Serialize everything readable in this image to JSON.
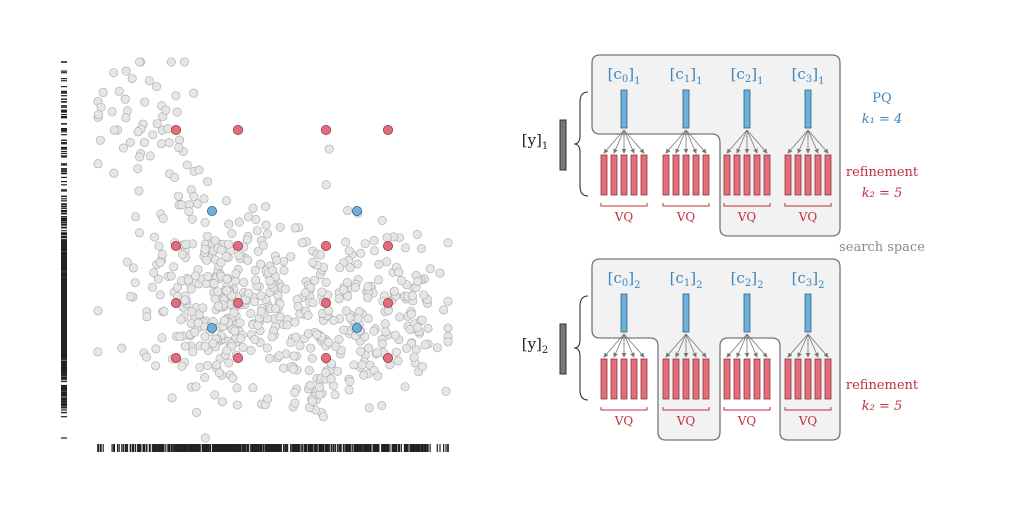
{
  "colors": {
    "data_point": "#e6e6e6",
    "pq_centroid": "#6fb0da",
    "refine_centroid": "#e36d7a",
    "pq_blue": "#3a86c0",
    "refine_red": "#c0303e",
    "search_space_gray": "#8a8a8a"
  },
  "scatter": {
    "pq_centroids": [
      [
        212,
        211
      ],
      [
        357,
        211
      ],
      [
        212,
        328
      ],
      [
        357,
        328
      ]
    ],
    "refinement_centroids": [
      [
        176,
        130
      ],
      [
        238,
        130
      ],
      [
        326,
        130
      ],
      [
        388,
        130
      ],
      [
        176,
        246
      ],
      [
        238,
        246
      ],
      [
        326,
        246
      ],
      [
        388,
        246
      ],
      [
        176,
        303
      ],
      [
        238,
        303
      ],
      [
        326,
        303
      ],
      [
        388,
        303
      ],
      [
        176,
        358
      ],
      [
        238,
        358
      ],
      [
        326,
        358
      ],
      [
        388,
        358
      ]
    ]
  },
  "diagram": {
    "blocks": [
      {
        "y_label": "[y]",
        "y_sub": "1",
        "centroids": [
          {
            "label": "[c",
            "idx": "0",
            "sub": "1"
          },
          {
            "label": "[c",
            "idx": "1",
            "sub": "1"
          },
          {
            "label": "[c",
            "idx": "2",
            "sub": "1"
          },
          {
            "label": "[c",
            "idx": "3",
            "sub": "1"
          }
        ],
        "vq_label": "VQ",
        "side_top": "PQ",
        "side_top_eq": "k₁ = 4",
        "side_bottom": "refinement",
        "side_bottom_eq": "k₂ = 5",
        "caption": "search space"
      },
      {
        "y_label": "[y]",
        "y_sub": "2",
        "centroids": [
          {
            "label": "[c",
            "idx": "0",
            "sub": "2"
          },
          {
            "label": "[c",
            "idx": "1",
            "sub": "2"
          },
          {
            "label": "[c",
            "idx": "2",
            "sub": "2"
          },
          {
            "label": "[c",
            "idx": "3",
            "sub": "2"
          }
        ],
        "vq_label": "VQ",
        "side_bottom": "refinement",
        "side_bottom_eq": "k₂ = 5"
      }
    ]
  }
}
